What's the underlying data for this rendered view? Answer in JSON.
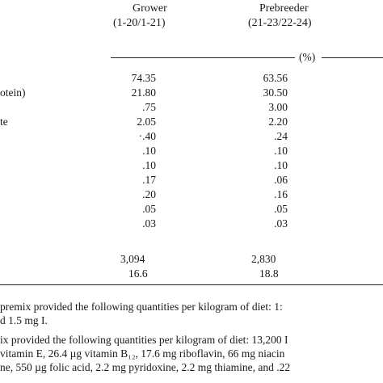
{
  "table": {
    "columns": [
      {
        "title": "Grower",
        "period": "(1-20/1-21)"
      },
      {
        "title": "Prebreeder",
        "period": "(21-23/22-24)"
      }
    ],
    "unit": "(%)",
    "row_labels": [
      "otein)",
      "te"
    ],
    "rows": [
      {
        "grower": "74.35",
        "prebreeder": "63.56"
      },
      {
        "grower": "21.80",
        "prebreeder": "30.50"
      },
      {
        "grower": ".75",
        "prebreeder": "3.00"
      },
      {
        "grower": "2.05",
        "prebreeder": "2.20"
      },
      {
        "grower": "·.40",
        "prebreeder": ".24"
      },
      {
        "grower": ".10",
        "prebreeder": ".10"
      },
      {
        "grower": ".10",
        "prebreeder": ".10"
      },
      {
        "grower": ".17",
        "prebreeder": ".06"
      },
      {
        "grower": ".20",
        "prebreeder": ".16"
      },
      {
        "grower": ".05",
        "prebreeder": ".05"
      },
      {
        "grower": ".03",
        "prebreeder": ".03"
      }
    ],
    "summary": [
      {
        "grower": "3,094",
        "prebreeder": "2,830"
      },
      {
        "grower": "16.6",
        "prebreeder": "18.8"
      }
    ]
  },
  "footnotes": [
    "premix provided the following quantities per kilogram of diet: 1:",
    "d 1.5 mg I.",
    "ix provided the following quantities per kilogram of diet: 13,200 I",
    "vitamin E, 26.4 µg vitamin B₁₂, 17.6 mg riboflavin, 66 mg niacin",
    "ne, 550 µg folic acid, 2.2 mg pyridoxine, 2.2 mg thiamine, and .22"
  ]
}
